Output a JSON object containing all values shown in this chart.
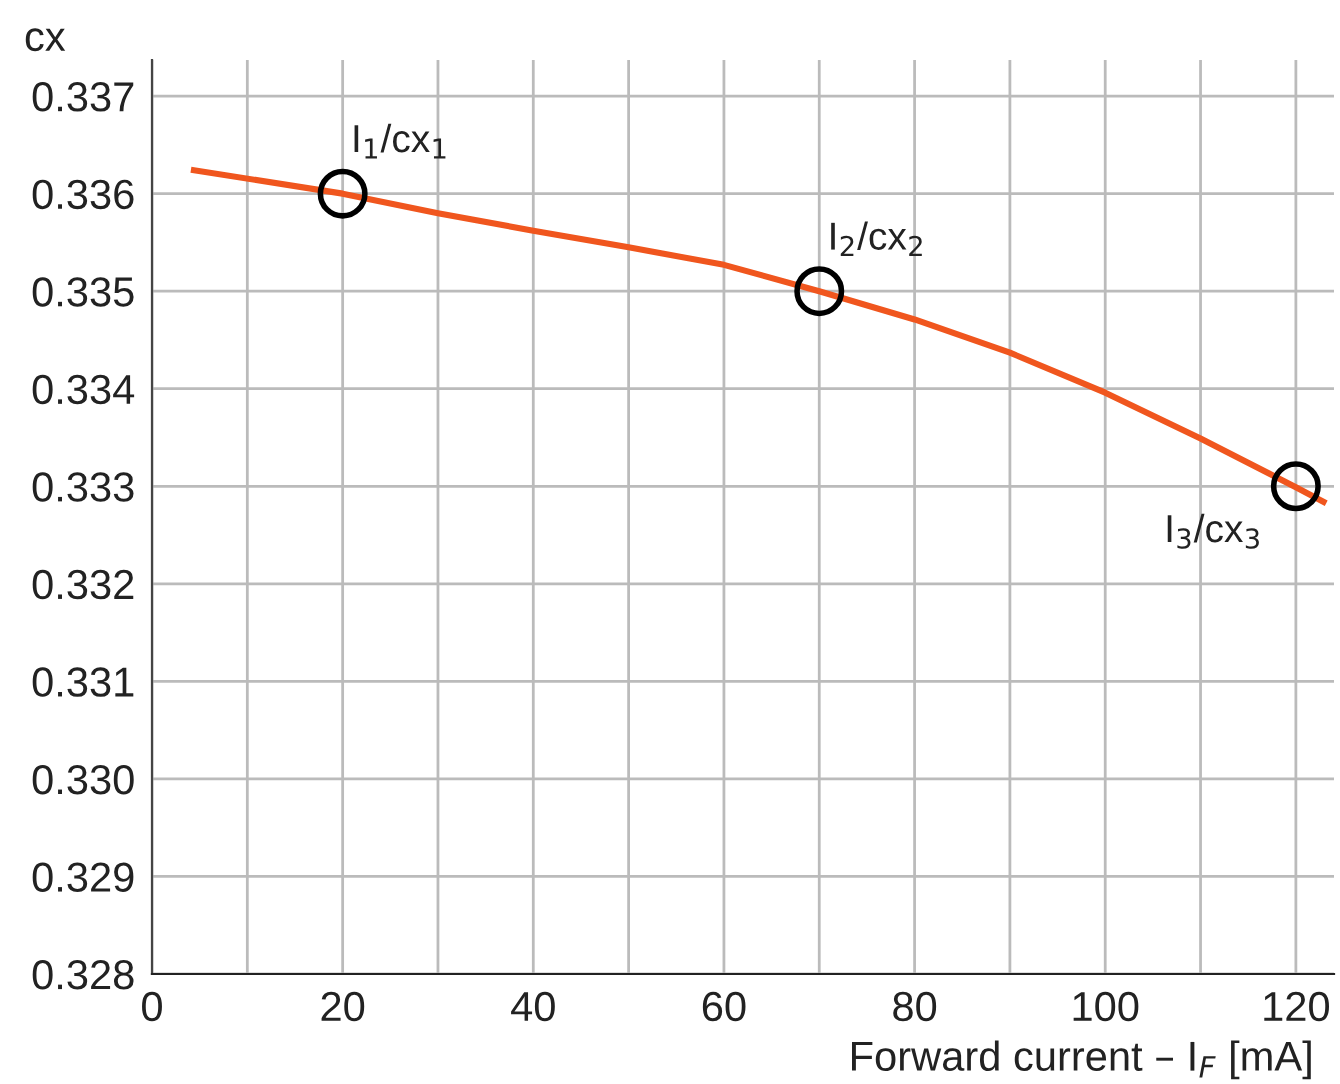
{
  "chart_data": {
    "type": "line",
    "xlabel": "Forward current – I$_{F}$ [mA]",
    "ylabel": "cx",
    "series": [
      {
        "color": "#f0561e",
        "x": [
          4.4,
          20,
          30,
          40,
          50,
          60,
          70,
          80,
          90,
          100,
          110,
          120,
          122.9
        ],
        "values": [
          0.33624,
          0.336,
          0.3358,
          0.33562,
          0.33545,
          0.33527,
          0.335,
          0.33471,
          0.33437,
          0.33396,
          0.33349,
          0.33299,
          0.33284
        ]
      },
      {
        "type": "scatter",
        "marker": "circle",
        "color": "#000000",
        "x": [
          20,
          70,
          120
        ],
        "values": [
          0.336,
          0.335,
          0.333
        ]
      }
    ],
    "annotations": [
      {
        "text": "I$_{1}$/cx$_{1}$",
        "x": 20,
        "y": 0.336
      },
      {
        "text": "I$_{2}$/cx$_{2}$",
        "x": 70,
        "y": 0.335
      },
      {
        "text": "I$_{3}$/cx$_{3}$",
        "x": 120,
        "y": 0.333
      }
    ],
    "xlim": [
      0,
      124
    ],
    "ylim": [
      0.328,
      0.33737
    ],
    "xticks": [
      0,
      {
        "value": 10,
        "label": null
      },
      20,
      {
        "value": 30,
        "label": null
      },
      40,
      {
        "value": 50,
        "label": null
      },
      60,
      {
        "value": 70,
        "label": null
      },
      80,
      {
        "value": 90,
        "label": null
      },
      100,
      {
        "value": 110,
        "label": null
      },
      120
    ],
    "yticks": [
      0.328,
      0.329,
      {
        "value": 0.33,
        "label": "0.330"
      },
      0.331,
      0.332,
      0.333,
      0.334,
      0.335,
      0.336,
      0.337
    ],
    "grid": true,
    "legend": false
  }
}
